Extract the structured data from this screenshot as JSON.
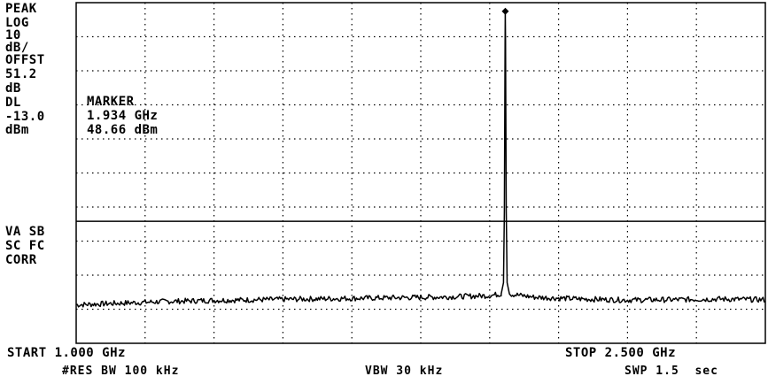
{
  "chart_data": {
    "type": "line",
    "x_unit": "GHz",
    "y_unit": "dBm",
    "xlim": [
      1.0,
      2.5
    ],
    "ylim": [
      -48.8,
      51.2
    ],
    "ref_level": 51.2,
    "db_per_div": 10,
    "display_line": -13.0,
    "grid": true,
    "x": [
      1.0,
      1.1,
      1.2,
      1.3,
      1.4,
      1.5,
      1.6,
      1.7,
      1.8,
      1.9,
      1.925,
      1.932,
      1.934,
      1.936,
      1.943,
      1.97,
      2.0,
      2.1,
      2.2,
      2.3,
      2.4,
      2.5
    ],
    "y": [
      -37.5,
      -37.0,
      -36.5,
      -36.2,
      -36.0,
      -35.8,
      -35.6,
      -35.4,
      -35.2,
      -34.8,
      -34.3,
      -28.0,
      48.66,
      -28.0,
      -34.3,
      -34.8,
      -35.3,
      -35.8,
      -36.1,
      -36.0,
      -35.8,
      -36.0
    ]
  },
  "marker": {
    "heading": "MARKER",
    "freq": "1.934 GHz",
    "level": "48.66 dBm"
  },
  "side_labels": [
    "PEAK",
    "LOG",
    "10",
    "dB/",
    "OFFST",
    "51.2",
    "dB",
    "DL",
    "-13.0",
    "dBm"
  ],
  "side_labels_lower": [
    "VA SB",
    "SC FC",
    "CORR"
  ],
  "footer": {
    "start": "START 1.000 GHz",
    "stop": "STOP 2.500 GHz",
    "rbw": "#RES BW 100 kHz",
    "vbw": "VBW 30 kHz",
    "swp": "SWP 1.5  sec"
  },
  "colors": {
    "ink": "#000000",
    "background": "#ffffff"
  }
}
